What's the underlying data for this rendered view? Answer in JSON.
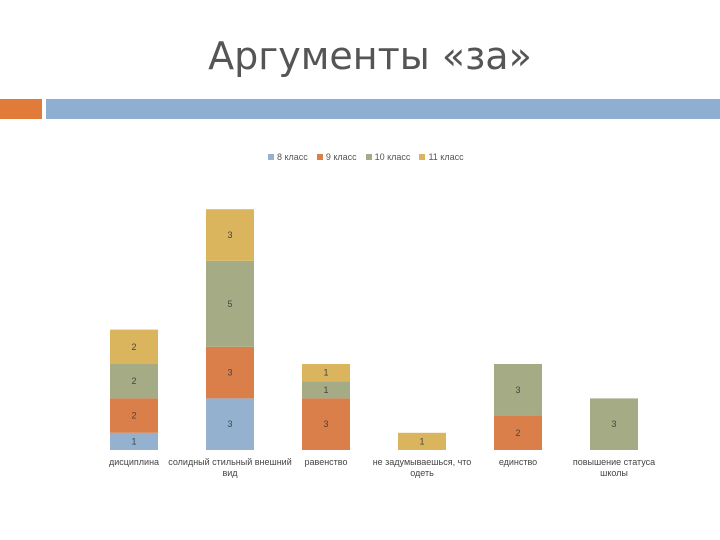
{
  "slide": {
    "title": "Аргументы «за»",
    "accent_color": "#e07b39",
    "band_color": "#8eafd1"
  },
  "chart_data": {
    "type": "bar",
    "stacked": true,
    "categories": [
      "дисциплина",
      "солидный стильный внешний вид",
      "равенство",
      "не задумываешься, что одеть",
      "единство",
      "повышение статуса школы"
    ],
    "series": [
      {
        "name": "8 класс",
        "color": "#94b2d0",
        "values": [
          1,
          3,
          null,
          null,
          null,
          null
        ]
      },
      {
        "name": "9 класс",
        "color": "#db7f4a",
        "values": [
          2,
          3,
          3,
          null,
          2,
          null
        ]
      },
      {
        "name": "10 класс",
        "color": "#a5ab85",
        "values": [
          2,
          5,
          1,
          null,
          3,
          3
        ]
      },
      {
        "name": "11 класс",
        "color": "#dbb55e",
        "values": [
          2,
          3,
          1,
          1,
          null,
          null
        ]
      }
    ],
    "legend_position": "top",
    "grid": false
  }
}
